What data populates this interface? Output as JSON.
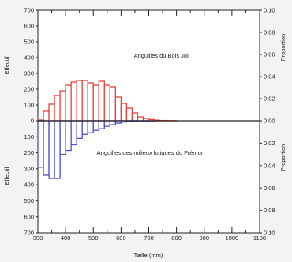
{
  "chart_data": {
    "type": "bar",
    "x_range": [
      300,
      1100
    ],
    "x_ticks": [
      "300",
      "400",
      "500",
      "600",
      "700",
      "800",
      "900",
      "1000",
      "1100"
    ],
    "xlabel": "Taille (mm)",
    "grid": false,
    "top_panel": {
      "annotation": "Anguilles du Bois Joli",
      "ylabel_left": "Effectif",
      "ylabel_right": "Proportion",
      "ylim_left": [
        0,
        700
      ],
      "ylim_right": [
        0,
        0.1
      ],
      "left_ticks": [
        "700",
        "600",
        "500",
        "400",
        "300",
        "200",
        "100",
        "0"
      ],
      "right_ticks": [
        "0.10",
        "0.08",
        "0.06",
        "0.04",
        "0.02",
        "0.00"
      ],
      "color": "#e8413a",
      "bins_start_mm": [
        300,
        320,
        340,
        360,
        380,
        400,
        420,
        440,
        460,
        480,
        500,
        520,
        540,
        560,
        580,
        600,
        620,
        640,
        660,
        680,
        700,
        720,
        740,
        760,
        780
      ],
      "bin_width_mm": 20,
      "values": [
        5,
        60,
        105,
        160,
        190,
        225,
        245,
        255,
        255,
        240,
        225,
        250,
        225,
        215,
        150,
        110,
        80,
        50,
        25,
        15,
        8,
        4,
        2,
        1,
        1
      ]
    },
    "bottom_panel": {
      "annotation": "Anguilles des milieux lotiques du Frémur",
      "ylabel_left": "Effectif",
      "ylabel_right": "Proportion",
      "ylim_left": [
        0,
        700
      ],
      "ylim_right": [
        0,
        0.1
      ],
      "left_ticks": [
        "100",
        "200",
        "300",
        "400",
        "500",
        "600",
        "700"
      ],
      "right_ticks": [
        "0.02",
        "0.04",
        "0.06",
        "0.08",
        "0.10"
      ],
      "color": "#4a4ed0",
      "bins_start_mm": [
        300,
        320,
        340,
        360,
        380,
        400,
        420,
        440,
        460,
        480,
        500,
        520,
        540,
        560,
        580,
        600,
        620,
        640,
        660,
        680,
        700,
        720,
        740,
        760,
        780
      ],
      "bin_width_mm": 20,
      "values": [
        290,
        340,
        360,
        360,
        210,
        185,
        150,
        110,
        85,
        75,
        60,
        50,
        35,
        25,
        15,
        8,
        4,
        2,
        1,
        1,
        1,
        0,
        0,
        0,
        0
      ]
    }
  }
}
